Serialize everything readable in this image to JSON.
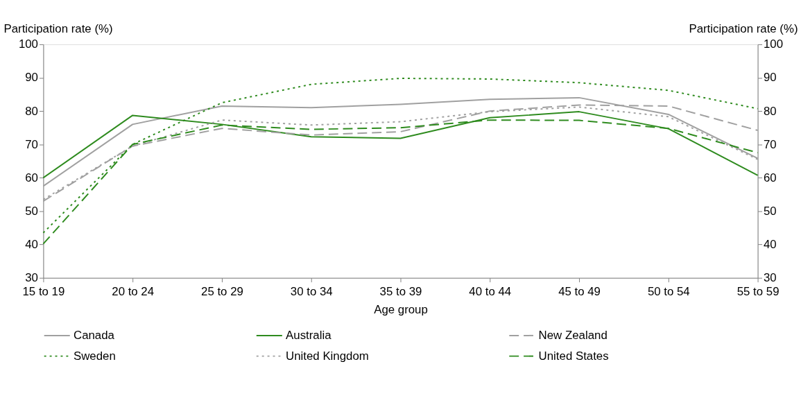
{
  "chart_data": {
    "type": "line",
    "xlabel": "Age group",
    "ylabel": "Participation rate (%)",
    "y2label": "Participation rate (%)",
    "categories": [
      "15 to 19",
      "20 to 24",
      "25 to 29",
      "30 to 34",
      "35 to 39",
      "40 to 44",
      "45 to 49",
      "50 to 54",
      "55 to 59"
    ],
    "ylim": [
      30,
      100
    ],
    "yticks": [
      30,
      40,
      50,
      60,
      70,
      80,
      90,
      100
    ],
    "y2lim": [
      30,
      100
    ],
    "y2ticks": [
      30,
      40,
      50,
      60,
      70,
      80,
      90,
      100
    ],
    "grid": false,
    "legend": "bottom",
    "marker": "none",
    "series": [
      {
        "name": "Canada",
        "color": "#a0a0a0",
        "line_style": "solid",
        "values": [
          57.5,
          76,
          81.5,
          81,
          82,
          83.5,
          84,
          79,
          65.8
        ]
      },
      {
        "name": "Australia",
        "color": "#2e8b1e",
        "line_style": "solid",
        "values": [
          60,
          78.7,
          76,
          72.3,
          71.8,
          78,
          79.8,
          74.7,
          60.7
        ]
      },
      {
        "name": "New Zealand",
        "color": "#a0a0a0",
        "line_style": "dashed",
        "values": [
          53,
          69.5,
          74.8,
          72.8,
          73.8,
          80,
          81.8,
          81.5,
          74.2
        ]
      },
      {
        "name": "Sweden",
        "color": "#2e8b1e",
        "line_style": "dotted",
        "values": [
          43.5,
          70,
          82.5,
          88,
          89.8,
          89.6,
          88.5,
          86.2,
          80.7
        ]
      },
      {
        "name": "United Kingdom",
        "color": "#a0a0a0",
        "line_style": "dotted",
        "values": [
          53.5,
          69.5,
          77.3,
          75.8,
          76.8,
          79.8,
          81.2,
          78.3,
          65.5
        ]
      },
      {
        "name": "United States",
        "color": "#2e8b1e",
        "line_style": "dashed",
        "values": [
          40.2,
          70,
          75.8,
          74.5,
          75,
          77.3,
          77.2,
          74.8,
          67.5
        ]
      }
    ]
  }
}
